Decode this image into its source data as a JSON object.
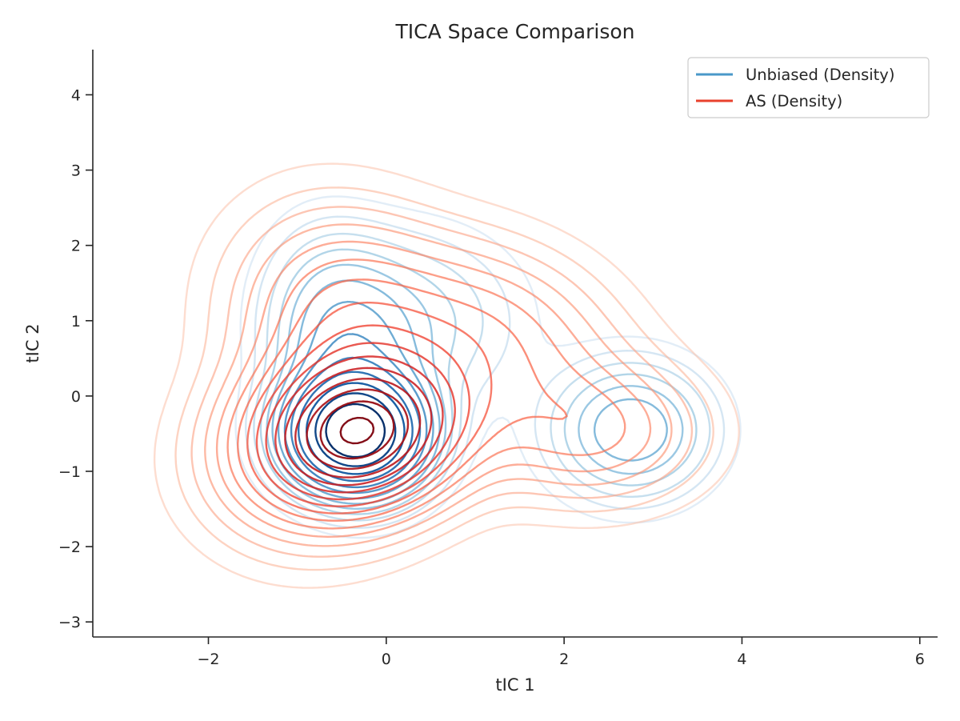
{
  "chart_data": {
    "type": "contour",
    "title": "TICA Space Comparison",
    "xlabel": "tIC 1",
    "ylabel": "tIC 2",
    "xlim": [
      -3.3,
      6.2
    ],
    "ylim": [
      -3.2,
      4.6
    ],
    "xticks": [
      -2,
      0,
      2,
      4,
      6
    ],
    "yticks": [
      -3,
      -2,
      -1,
      0,
      1,
      2,
      3,
      4
    ],
    "grid": false,
    "legend_position": "top-right",
    "series": [
      {
        "name": "Unbiased (Density)",
        "color": "#4a98c9",
        "colormap": "Blues",
        "components": [
          {
            "weight": 0.52,
            "mean": [
              -0.35,
              -0.5
            ],
            "sd": [
              0.45,
              0.45
            ],
            "rho": 0.0
          },
          {
            "weight": 0.22,
            "mean": [
              -0.45,
              0.5
            ],
            "sd": [
              0.5,
              0.9
            ],
            "rho": -0.2
          },
          {
            "weight": 0.12,
            "mean": [
              0.3,
              1.0
            ],
            "sd": [
              0.75,
              0.75
            ],
            "rho": 0.0
          },
          {
            "weight": 0.14,
            "mean": [
              2.75,
              -0.45
            ],
            "sd": [
              0.55,
              0.55
            ],
            "rho": 0.0
          }
        ],
        "levels": [
          0.006,
          0.012,
          0.02,
          0.03,
          0.042,
          0.056,
          0.075,
          0.1,
          0.13,
          0.17,
          0.22,
          0.28,
          0.35
        ]
      },
      {
        "name": "AS (Density)",
        "color": "#e8412d",
        "colormap": "Reds",
        "components": [
          {
            "weight": 0.45,
            "mean": [
              -0.3,
              -0.5
            ],
            "sd": [
              0.75,
              0.65
            ],
            "rho": 0.1
          },
          {
            "weight": 0.2,
            "mean": [
              -0.5,
              1.0
            ],
            "sd": [
              0.8,
              0.95
            ],
            "rho": -0.1
          },
          {
            "weight": 0.17,
            "mean": [
              1.2,
              0.8
            ],
            "sd": [
              0.9,
              0.8
            ],
            "rho": -0.2
          },
          {
            "weight": 0.1,
            "mean": [
              2.3,
              -0.5
            ],
            "sd": [
              0.8,
              0.6
            ],
            "rho": 0.0
          },
          {
            "weight": 0.08,
            "mean": [
              -1.0,
              -1.0
            ],
            "sd": [
              0.8,
              0.8
            ],
            "rho": 0.0
          }
        ],
        "levels": [
          0.004,
          0.008,
          0.013,
          0.019,
          0.026,
          0.034,
          0.043,
          0.053,
          0.064,
          0.076,
          0.089,
          0.103,
          0.118,
          0.134,
          0.151,
          0.168,
          0.185
        ]
      }
    ],
    "colors": {
      "axis": "#262626",
      "blues": [
        "#deebf7",
        "#c6dbef",
        "#9ecae1",
        "#6baed6",
        "#4292c6",
        "#2171b5",
        "#08519c",
        "#08306b"
      ],
      "reds": [
        "#fee0d2",
        "#fcbba1",
        "#fc9272",
        "#fb6a4a",
        "#ef3b2c",
        "#cb181d",
        "#a50f15",
        "#67000d"
      ]
    }
  }
}
